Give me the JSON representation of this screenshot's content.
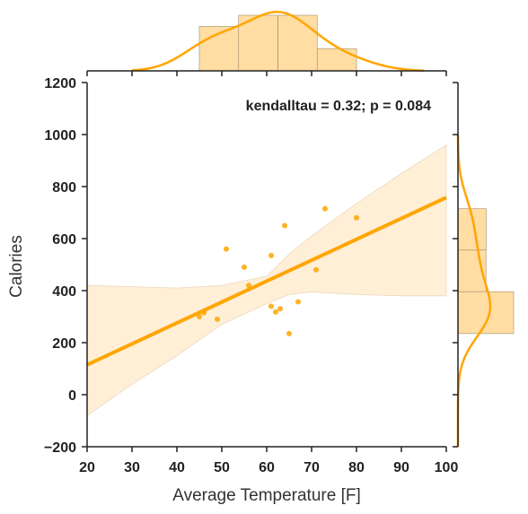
{
  "chart_data": {
    "type": "scatter",
    "subtype": "jointplot",
    "xlabel": "Average Temperature [F]",
    "ylabel": "Calories",
    "xlim": [
      20,
      100
    ],
    "ylim": [
      -200,
      1200
    ],
    "xticks": [
      "20",
      "30",
      "40",
      "50",
      "60",
      "70",
      "80",
      "90",
      "100"
    ],
    "yticks": [
      "−200",
      "0",
      "200",
      "400",
      "600",
      "800",
      "1000",
      "1200"
    ],
    "annotation": "kendalltau = 0.32; p = 0.084",
    "grid": false,
    "color": "#ffa500",
    "points": [
      {
        "x": 45,
        "y": 300
      },
      {
        "x": 46,
        "y": 315
      },
      {
        "x": 49,
        "y": 290
      },
      {
        "x": 51,
        "y": 560
      },
      {
        "x": 55,
        "y": 490
      },
      {
        "x": 56,
        "y": 420
      },
      {
        "x": 61,
        "y": 535
      },
      {
        "x": 61,
        "y": 340
      },
      {
        "x": 62,
        "y": 318
      },
      {
        "x": 63,
        "y": 330
      },
      {
        "x": 64,
        "y": 650
      },
      {
        "x": 65,
        "y": 235
      },
      {
        "x": 67,
        "y": 357
      },
      {
        "x": 71,
        "y": 480
      },
      {
        "x": 73,
        "y": 715
      },
      {
        "x": 80,
        "y": 680
      }
    ],
    "regression": {
      "x": [
        20,
        100
      ],
      "y": [
        115,
        758
      ]
    },
    "confidence_band": {
      "x": [
        20,
        30,
        40,
        50,
        60,
        65,
        70,
        80,
        90,
        100
      ],
      "lower": [
        -80,
        40,
        150,
        270,
        350,
        385,
        395,
        385,
        380,
        380
      ],
      "upper": [
        420,
        415,
        410,
        420,
        455,
        540,
        610,
        735,
        850,
        960
      ]
    },
    "x_histogram": {
      "bins": [
        [
          45,
          53.75
        ],
        [
          53.75,
          62.5
        ],
        [
          62.5,
          71.25
        ],
        [
          71.25,
          80
        ]
      ],
      "counts": [
        4,
        5,
        5,
        2
      ]
    },
    "y_histogram": {
      "bins": [
        [
          235,
          396
        ],
        [
          396,
          556
        ],
        [
          556,
          715
        ]
      ],
      "counts": [
        8,
        4,
        4
      ]
    }
  }
}
